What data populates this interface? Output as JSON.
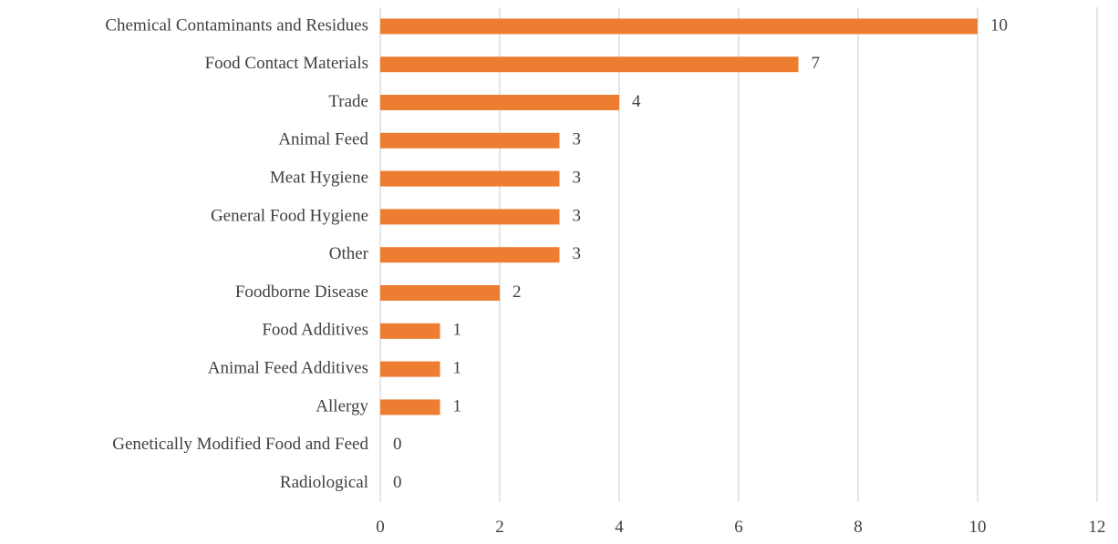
{
  "chart_data": {
    "type": "bar",
    "orientation": "horizontal",
    "categories": [
      "Chemical Contaminants and Residues",
      "Food Contact Materials",
      "Trade",
      "Animal Feed",
      "Meat Hygiene",
      "General Food Hygiene",
      "Other",
      "Foodborne Disease",
      "Food Additives",
      "Animal Feed Additives",
      "Allergy",
      "Genetically Modified Food and Feed",
      "Radiological"
    ],
    "values": [
      10,
      7,
      4,
      3,
      3,
      3,
      3,
      2,
      1,
      1,
      1,
      0,
      0
    ],
    "xlim": [
      0,
      12
    ],
    "xticks": [
      "0",
      "2",
      "4",
      "6",
      "8",
      "10",
      "12"
    ],
    "grid": "vertical",
    "data_labels": true,
    "title": "",
    "xlabel": "",
    "ylabel": "",
    "colors": {
      "bar": "#ED7D31",
      "grid": "#D9D9D9",
      "text": "#404040"
    }
  }
}
